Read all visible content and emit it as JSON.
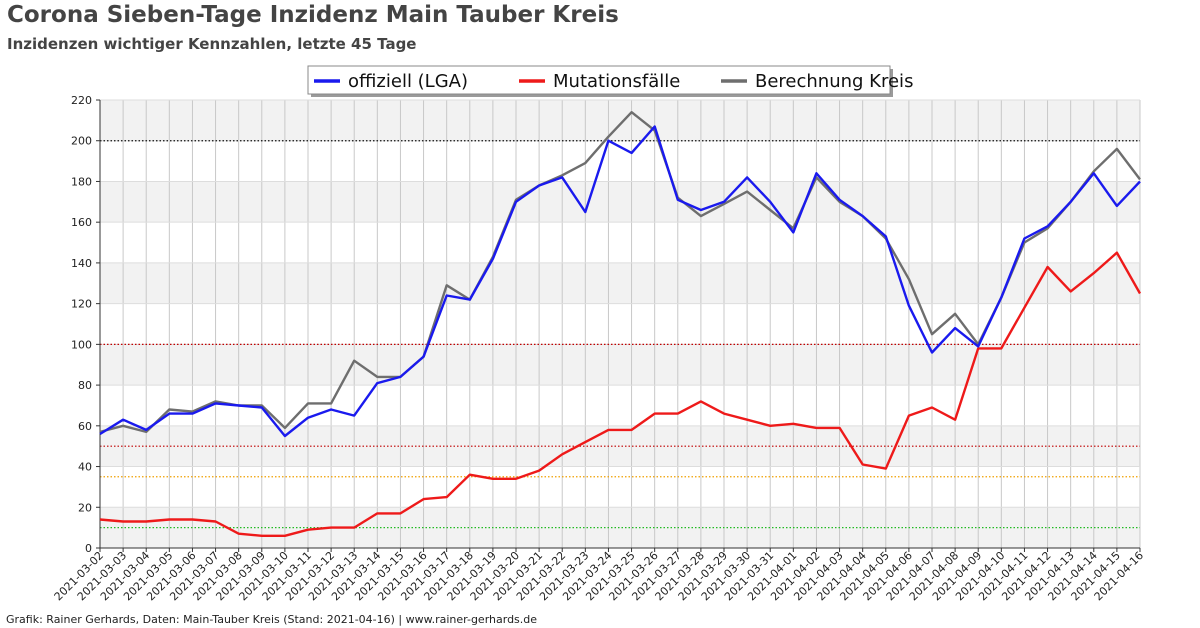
{
  "header": {
    "title": "Corona Sieben-Tage Inzidenz Main Tauber Kreis",
    "subtitle": "Inzidenzen wichtiger Kennzahlen, letzte 45 Tage"
  },
  "footer": {
    "text": "Grafik: Rainer Gerhards, Daten: Main-Tauber Kreis (Stand: 2021-04-16) | www.rainer-gerhards.de"
  },
  "chart_data": {
    "type": "line",
    "title": "Corona Sieben-Tage Inzidenz Main Tauber Kreis",
    "subtitle": "Inzidenzen wichtiger Kennzahlen, letzte 45 Tage",
    "xlabel": "",
    "ylabel": "",
    "ylim": [
      0,
      220
    ],
    "yticks": [
      0,
      20,
      40,
      60,
      80,
      100,
      120,
      140,
      160,
      180,
      200,
      220
    ],
    "grid": true,
    "legend_position": "top-center",
    "x_labels": [
      "2021-03-02",
      "2021-03-03",
      "2021-03-04",
      "2021-03-05",
      "2021-03-06",
      "2021-03-07",
      "2021-03-08",
      "2021-03-09",
      "2021-03-10",
      "2021-03-11",
      "2021-03-12",
      "2021-03-13",
      "2021-03-14",
      "2021-03-15",
      "2021-03-16",
      "2021-03-17",
      "2021-03-18",
      "2021-03-19",
      "2021-03-20",
      "2021-03-21",
      "2021-03-22",
      "2021-03-23",
      "2021-03-24",
      "2021-03-25",
      "2021-03-26",
      "2021-03-27",
      "2021-03-28",
      "2021-03-29",
      "2021-03-30",
      "2021-03-31",
      "2021-04-01",
      "2021-04-02",
      "2021-04-03",
      "2021-04-04",
      "2021-04-05",
      "2021-04-06",
      "2021-04-07",
      "2021-04-08",
      "2021-04-09",
      "2021-04-10",
      "2021-04-11",
      "2021-04-12",
      "2021-04-13",
      "2021-04-14",
      "2021-04-15",
      "2021-04-16"
    ],
    "reference_lines": [
      {
        "value": 10,
        "color": "#22bb22"
      },
      {
        "value": 35,
        "color": "#f0a000"
      },
      {
        "value": 50,
        "color": "#c00000"
      },
      {
        "value": 100,
        "color": "#c00000"
      },
      {
        "value": 200,
        "color": "#111111"
      }
    ],
    "series": [
      {
        "name": "offiziell (LGA)",
        "color": "#1a1aee",
        "x": [
          "2021-03-02",
          "2021-03-03",
          "2021-03-04",
          "2021-03-05",
          "2021-03-06",
          "2021-03-07",
          "2021-03-08",
          "2021-03-09",
          "2021-03-10",
          "2021-03-11",
          "2021-03-12",
          "2021-03-13",
          "2021-03-14",
          "2021-03-15",
          "2021-03-16",
          "2021-03-17",
          "2021-03-18",
          "2021-03-19",
          "2021-03-20",
          "2021-03-21",
          "2021-03-22",
          "2021-03-23",
          "2021-03-24",
          "2021-03-25",
          "2021-03-26",
          "2021-03-27",
          "2021-03-28",
          "2021-03-29",
          "2021-03-30",
          "2021-03-31",
          "2021-04-01",
          "2021-04-02",
          "2021-04-03",
          "2021-04-04",
          "2021-04-05",
          "2021-04-06",
          "2021-04-07",
          "2021-04-08",
          "2021-04-09",
          "2021-04-10",
          "2021-04-11",
          "2021-04-12",
          "2021-04-13",
          "2021-04-14",
          "2021-04-15",
          "2021-04-16"
        ],
        "values": [
          56,
          63,
          58,
          66,
          66,
          71,
          70,
          69,
          55,
          64,
          68,
          65,
          81,
          84,
          94,
          124,
          122,
          142,
          170,
          178,
          182,
          165,
          200,
          194,
          207,
          171,
          166,
          170,
          182,
          170,
          155,
          184,
          171,
          163,
          153,
          119,
          96,
          108,
          99,
          123,
          152,
          158,
          170,
          184,
          168,
          180
        ]
      },
      {
        "name": "Mutationsfälle",
        "color": "#ee1a1a",
        "x": [
          "2021-03-02",
          "2021-03-03",
          "2021-03-04",
          "2021-03-05",
          "2021-03-06",
          "2021-03-07",
          "2021-03-08",
          "2021-03-09",
          "2021-03-10",
          "2021-03-11",
          "2021-03-12",
          "2021-03-13",
          "2021-03-14",
          "2021-03-15",
          "2021-03-16",
          "2021-03-17",
          "2021-03-18",
          "2021-03-19",
          "2021-03-20",
          "2021-03-21",
          "2021-03-22",
          "2021-03-23",
          "2021-03-24",
          "2021-03-25",
          "2021-03-26",
          "2021-03-27",
          "2021-03-28",
          "2021-03-29",
          "2021-03-30",
          "2021-03-31",
          "2021-04-01",
          "2021-04-02",
          "2021-04-03",
          "2021-04-04",
          "2021-04-05",
          "2021-04-06",
          "2021-04-07",
          "2021-04-08",
          "2021-04-09",
          "2021-04-10",
          "2021-04-11",
          "2021-04-12",
          "2021-04-13",
          "2021-04-14",
          "2021-04-15",
          "2021-04-16"
        ],
        "values": [
          14,
          13,
          13,
          14,
          14,
          13,
          7,
          6,
          6,
          9,
          10,
          10,
          17,
          17,
          24,
          25,
          36,
          34,
          34,
          38,
          46,
          52,
          58,
          58,
          66,
          66,
          72,
          66,
          63,
          60,
          61,
          59,
          59,
          41,
          39,
          65,
          69,
          63,
          98,
          98,
          118,
          138,
          126,
          135,
          145,
          125
        ]
      },
      {
        "name": "Berechnung Kreis",
        "color": "#6e6e6e",
        "x": [
          "2021-03-02",
          "2021-03-03",
          "2021-03-04",
          "2021-03-05",
          "2021-03-06",
          "2021-03-07",
          "2021-03-08",
          "2021-03-09",
          "2021-03-10",
          "2021-03-11",
          "2021-03-12",
          "2021-03-13",
          "2021-03-14",
          "2021-03-15",
          "2021-03-16",
          "2021-03-17",
          "2021-03-18",
          "2021-03-19",
          "2021-03-20",
          "2021-03-21",
          "2021-03-22",
          "2021-03-23",
          "2021-03-24",
          "2021-03-25",
          "2021-03-26",
          "2021-03-27",
          "2021-03-28",
          "2021-03-29",
          "2021-03-30",
          "2021-03-31",
          "2021-04-01",
          "2021-04-02",
          "2021-04-03",
          "2021-04-04",
          "2021-04-05",
          "2021-04-06",
          "2021-04-07",
          "2021-04-08",
          "2021-04-09",
          "2021-04-10",
          "2021-04-11",
          "2021-04-12",
          "2021-04-13",
          "2021-04-14",
          "2021-04-15",
          "2021-04-16"
        ],
        "values": [
          57,
          60,
          57,
          68,
          67,
          72,
          70,
          70,
          59,
          71,
          71,
          92,
          84,
          84,
          94,
          129,
          122,
          143,
          171,
          178,
          183,
          189,
          202,
          214,
          205,
          172,
          163,
          169,
          175,
          166,
          157,
          182,
          170,
          163,
          152,
          132,
          105,
          115,
          100,
          123,
          150,
          157,
          170,
          185,
          196,
          181
        ]
      }
    ]
  }
}
